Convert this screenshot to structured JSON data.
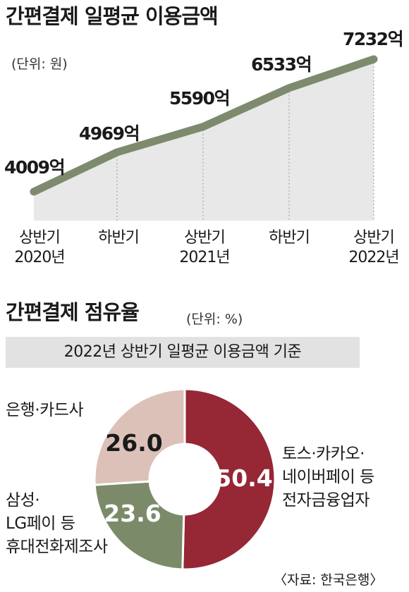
{
  "line_title": "간편결제 일평균 이용금액",
  "line_unit": "(단위: 원)",
  "pie_title": "간편결제 점유율",
  "pie_unit": "(단위: %)",
  "pie_subtitle": "2022년 상반기 일평균 이용금액 기준",
  "source": "〈자료: 한국은행〉",
  "colors": {
    "line": "#7d8a6e",
    "area": "#e8e8e8",
    "bank_card": "#dcc1b9",
    "manufacturer": "#7b8b6a",
    "fintech": "#962735"
  },
  "chart_data": [
    {
      "type": "line",
      "title": "간편결제 일평균 이용금액",
      "unit": "(단위: 원)",
      "categories": [
        [
          "상반기",
          "2020년"
        ],
        [
          "하반기",
          ""
        ],
        [
          "상반기",
          "2021년"
        ],
        [
          "하반기",
          ""
        ],
        [
          "상반기",
          "2022년"
        ]
      ],
      "values": [
        4009,
        4969,
        5590,
        6533,
        7232
      ],
      "value_labels": [
        "4009억",
        "4969억",
        "5590억",
        "6533억",
        "7232억"
      ],
      "grid": false
    },
    {
      "type": "pie",
      "title": "간편결제 점유율",
      "unit": "(단위: %)",
      "subtitle": "2022년 상반기 일평균 이용금액 기준",
      "slices": [
        {
          "label": "토스·카카오·\n네이버페이 등\n전자금융업자",
          "value": 50.4,
          "value_label": "50.4"
        },
        {
          "label": "삼성·\nLG페이 등\n휴대전화제조사",
          "value": 23.6,
          "value_label": "23.6"
        },
        {
          "label": "은행·카드사",
          "value": 26.0,
          "value_label": "26.0"
        }
      ]
    }
  ]
}
